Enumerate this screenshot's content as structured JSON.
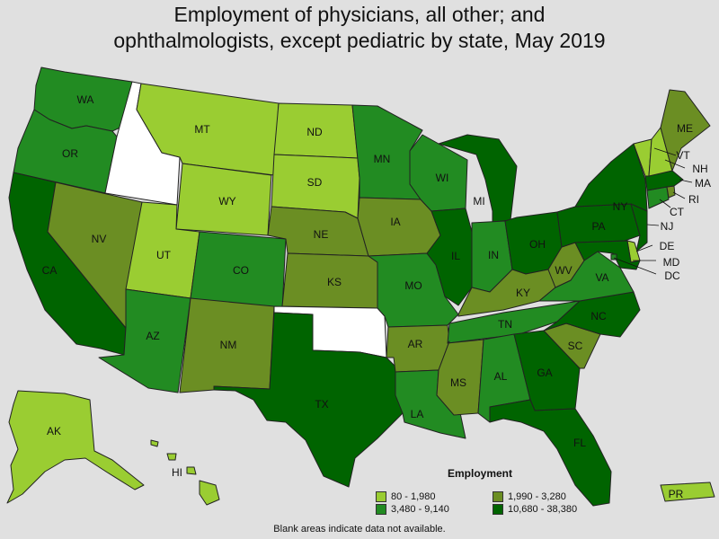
{
  "title": {
    "line1": "Employment of physicians, all other; and",
    "line2": "ophthalmologists, except pediatric by state, May 2019"
  },
  "legend": {
    "title": "Employment",
    "items": [
      {
        "label": "80 - 1,980",
        "color": "#9acd32"
      },
      {
        "label": "1,990 - 3,280",
        "color": "#6b8e23"
      },
      {
        "label": "3,480 - 9,140",
        "color": "#228b22"
      },
      {
        "label": "10,680 - 38,380",
        "color": "#006400"
      }
    ]
  },
  "note": "Blank areas indicate data not available.",
  "colors": {
    "c1": "#9acd32",
    "c2": "#6b8e23",
    "c3": "#228b22",
    "c4": "#006400",
    "na": "#ffffff",
    "border": "#222222"
  },
  "states": {
    "WA": "c3",
    "OR": "c3",
    "CA": "c4",
    "ID": "na",
    "NV": "c2",
    "MT": "c1",
    "WY": "c1",
    "UT": "c1",
    "AZ": "c3",
    "CO": "c3",
    "NM": "c2",
    "ND": "c1",
    "SD": "c1",
    "NE": "c2",
    "KS": "c2",
    "OK": "na",
    "TX": "c4",
    "MN": "c3",
    "IA": "c2",
    "MO": "c3",
    "AR": "c2",
    "LA": "c3",
    "WI": "c3",
    "IL": "c4",
    "MI": "c4",
    "IN": "c3",
    "OH": "c4",
    "KY": "c2",
    "TN": "c3",
    "MS": "c2",
    "AL": "c3",
    "GA": "c4",
    "FL": "c4",
    "SC": "c2",
    "NC": "c4",
    "VA": "c3",
    "WV": "c2",
    "PA": "c4",
    "NY": "c4",
    "ME": "c2",
    "VT": "c1",
    "NH": "c1",
    "MA": "c4",
    "RI": "c2",
    "CT": "c3",
    "NJ": "c4",
    "DE": "c1",
    "MD": "c4",
    "DC": "c3",
    "AK": "c1",
    "HI": "c1",
    "PR": "c1"
  }
}
